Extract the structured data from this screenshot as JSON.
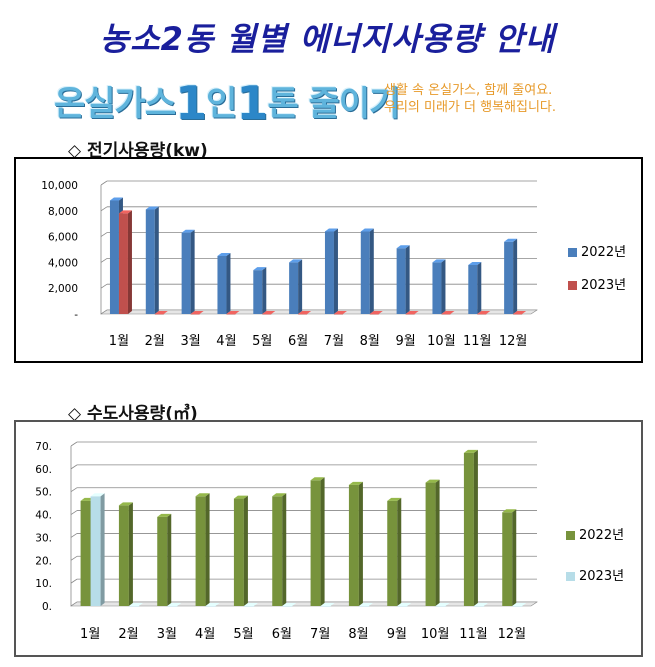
{
  "title": "농소2동 월별 에너지사용량 안내",
  "slogan": {
    "part1": "온실가스",
    "one1": "1",
    "part2": "인",
    "one2": "1",
    "part3": "톤 줄이기"
  },
  "tagline": {
    "line1": "생활 속 온실가스, 함께 줄여요.",
    "line2": "우리의 미래가 더 행복해집니다."
  },
  "sections": {
    "electricity_title": "◇ 전기사용량(kw)",
    "water_title": "◇ 수도사용량(㎥)"
  },
  "chart_data": [
    {
      "type": "bar",
      "title": "전기사용량(kw)",
      "categories": [
        "1월",
        "2월",
        "3월",
        "4월",
        "5월",
        "6월",
        "7월",
        "8월",
        "9월",
        "10월",
        "11월",
        "12월"
      ],
      "ylim": [
        0,
        10000
      ],
      "yticks": [
        "-",
        "2,000",
        "4,000",
        "6,000",
        "8,000",
        "10,000"
      ],
      "grid": true,
      "legend_position": "right",
      "series": [
        {
          "name": "2022년",
          "color": "#4a7ebb",
          "values": [
            8800,
            8100,
            6300,
            4500,
            3400,
            4000,
            6400,
            6400,
            5100,
            4000,
            3800,
            5600
          ]
        },
        {
          "name": "2023년",
          "color": "#c0504d",
          "values": [
            7800,
            0,
            0,
            0,
            0,
            0,
            0,
            0,
            0,
            0,
            0,
            0
          ]
        }
      ]
    },
    {
      "type": "bar",
      "title": "수도사용량(㎥)",
      "categories": [
        "1월",
        "2월",
        "3월",
        "4월",
        "5월",
        "6월",
        "7월",
        "8월",
        "9월",
        "10월",
        "11월",
        "12월"
      ],
      "ylim": [
        0,
        70
      ],
      "yticks": [
        "0.",
        "10.",
        "20.",
        "30.",
        "40.",
        "50.",
        "60.",
        "70."
      ],
      "grid": true,
      "legend_position": "right",
      "series": [
        {
          "name": "2022년",
          "color": "#77933c",
          "values": [
            46,
            44,
            39,
            48,
            47,
            48,
            55,
            53,
            46,
            54,
            67,
            41
          ]
        },
        {
          "name": "2023년",
          "color": "#b7dde8",
          "values": [
            48,
            0,
            0,
            0,
            0,
            0,
            0,
            0,
            0,
            0,
            0,
            0
          ]
        }
      ]
    }
  ]
}
